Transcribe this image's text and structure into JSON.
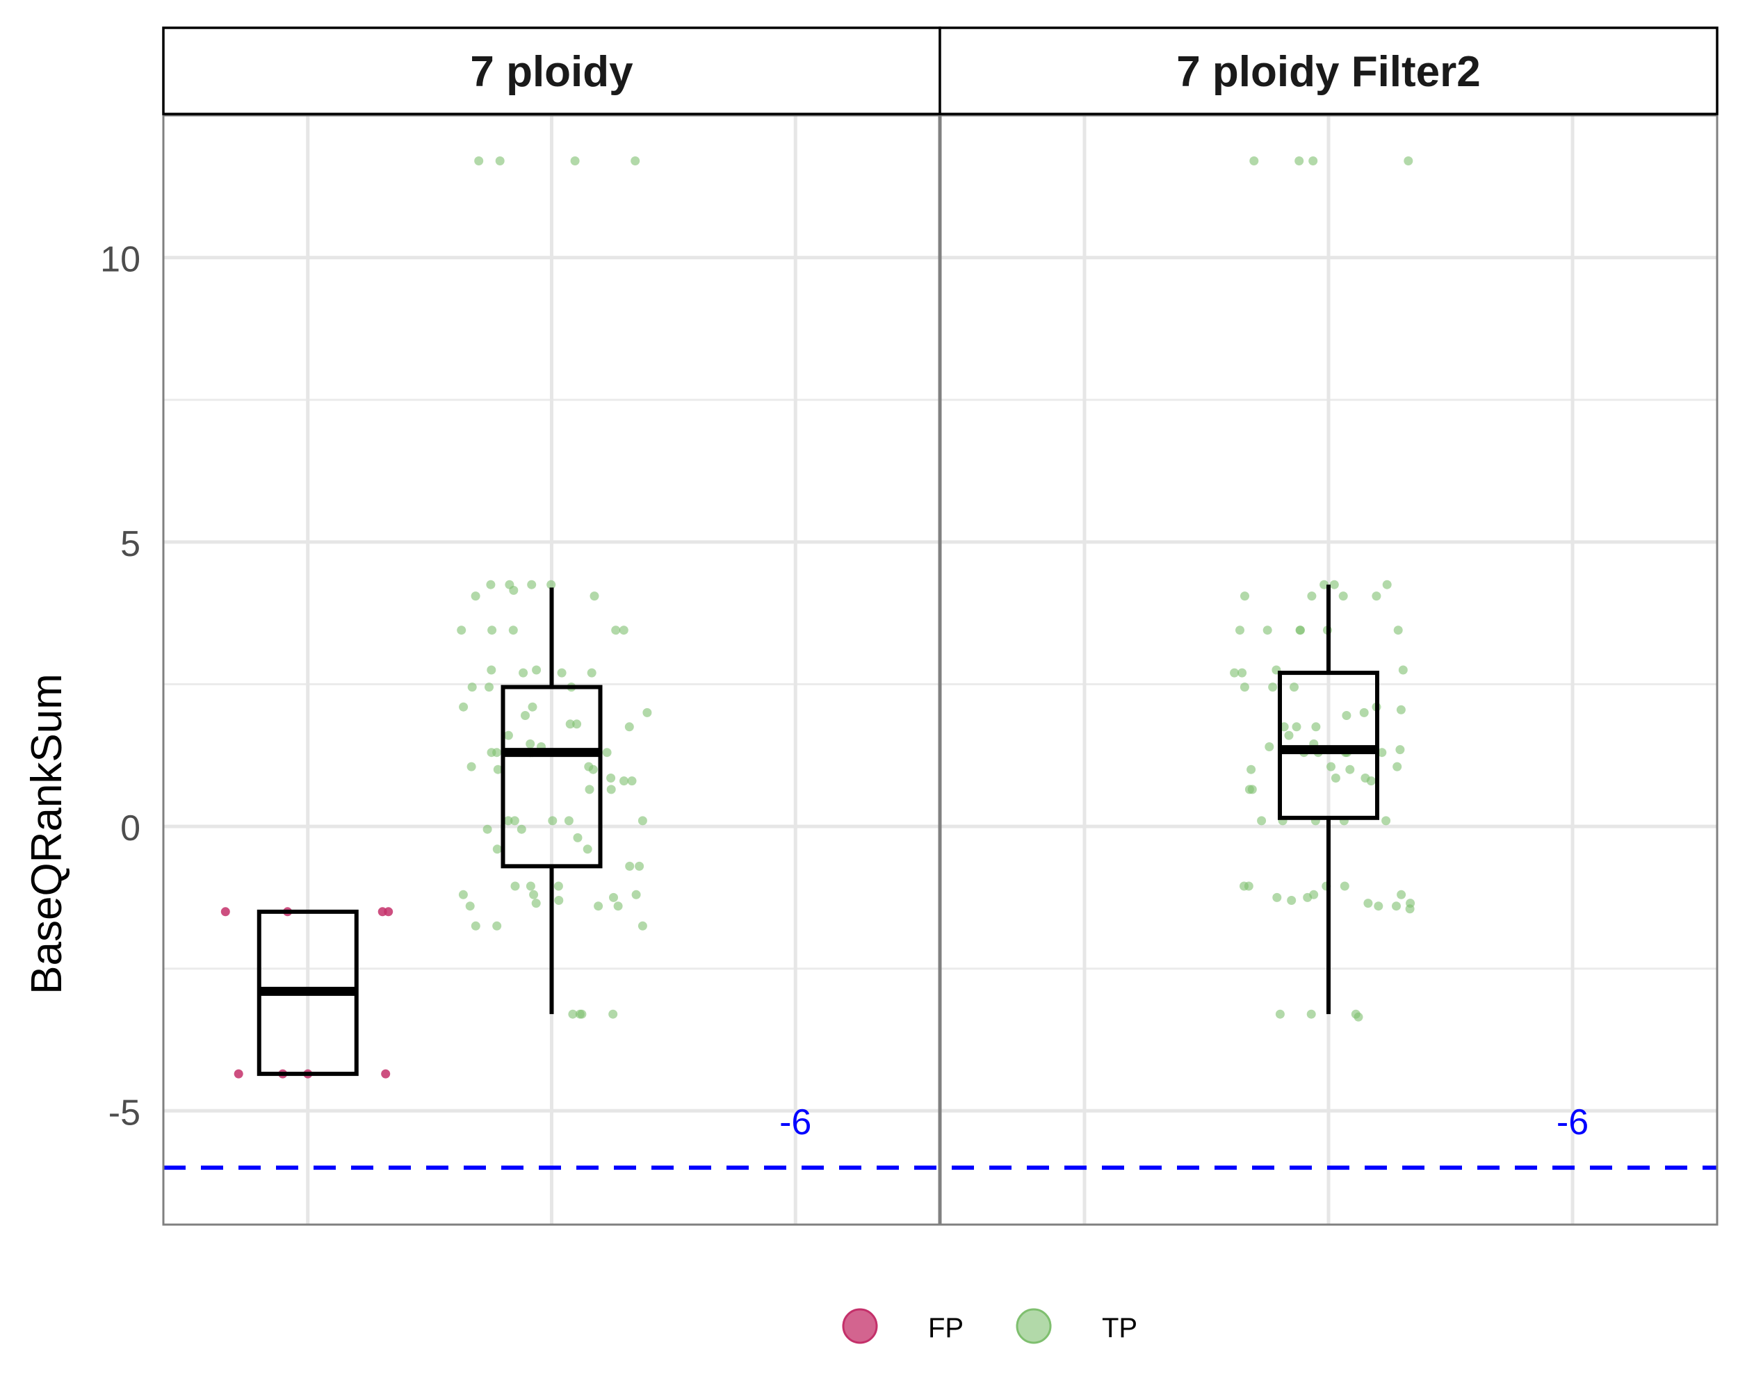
{
  "chart_data": {
    "type": "boxplot",
    "ylabel": "BaseQRankSum",
    "ylim": [
      -7,
      12.5
    ],
    "yticks": [
      -5,
      0,
      5,
      10
    ],
    "ytick_labels": [
      "-5",
      "0",
      "5",
      "10"
    ],
    "grid": true,
    "legend_position": "bottom",
    "threshold": {
      "value": -6,
      "label": "-6",
      "color": "#0000ff",
      "style": "dashed"
    },
    "series": [
      {
        "name": "FP",
        "color": "#c4306a"
      },
      {
        "name": "TP",
        "color": "#7fbf6f"
      }
    ],
    "panels": [
      {
        "title": "7 ploidy",
        "boxes": [
          {
            "series": "FP",
            "lower_whisker": -4.35,
            "q1": -4.35,
            "median": -2.9,
            "q3": -1.5,
            "upper_whisker": -1.5
          },
          {
            "series": "TP",
            "lower_whisker": -3.3,
            "q1": -0.7,
            "median": 1.3,
            "q3": 2.45,
            "upper_whisker": 4.2
          }
        ],
        "points": [
          {
            "series": "FP",
            "values": [
              -1.5,
              -1.5,
              -1.5,
              -1.5,
              -4.35,
              -4.35,
              -4.35,
              -4.35
            ]
          },
          {
            "series": "TP",
            "values": [
              11.7,
              11.7,
              11.7,
              11.7,
              4.25,
              4.25,
              4.25,
              4.25,
              4.05,
              4.05,
              4.15,
              3.45,
              3.45,
              3.45,
              3.45,
              3.45,
              2.75,
              2.75,
              2.7,
              2.7,
              2.7,
              2.45,
              2.45,
              2.45,
              2.1,
              2.1,
              2.0,
              1.95,
              1.8,
              1.8,
              1.75,
              1.6,
              1.45,
              1.4,
              1.3,
              1.3,
              1.3,
              1.3,
              1.3,
              1.3,
              1.05,
              1.05,
              1.0,
              1.0,
              0.85,
              0.8,
              0.8,
              0.65,
              0.65,
              0.1,
              0.1,
              0.1,
              0.1,
              0.1,
              -0.05,
              -0.05,
              -0.2,
              -0.4,
              -0.4,
              -0.7,
              -0.7,
              -1.05,
              -1.05,
              -1.05,
              -1.2,
              -1.2,
              -1.2,
              -1.25,
              -1.3,
              -1.35,
              -1.4,
              -1.4,
              -1.4,
              -1.75,
              -1.75,
              -1.75,
              -3.3,
              -3.3,
              -3.3,
              -3.3
            ]
          }
        ]
      },
      {
        "title": "7 ploidy Filter2",
        "boxes": [
          {
            "series": "TP",
            "lower_whisker": -3.3,
            "q1": 0.15,
            "median": 1.35,
            "q3": 2.7,
            "upper_whisker": 4.25
          }
        ],
        "points": [
          {
            "series": "TP",
            "values": [
              11.7,
              11.7,
              11.7,
              11.7,
              4.25,
              4.25,
              4.25,
              4.05,
              4.05,
              4.05,
              4.05,
              3.45,
              3.45,
              3.45,
              3.45,
              3.45,
              3.45,
              2.75,
              2.75,
              2.7,
              2.7,
              2.45,
              2.45,
              2.45,
              2.1,
              2.05,
              2.0,
              1.95,
              1.75,
              1.75,
              1.75,
              1.6,
              1.45,
              1.4,
              1.35,
              1.3,
              1.3,
              1.3,
              1.3,
              1.3,
              1.05,
              1.05,
              1.0,
              1.0,
              0.85,
              0.85,
              0.8,
              0.65,
              0.65,
              0.1,
              0.1,
              0.1,
              0.1,
              0.1,
              -1.05,
              -1.05,
              -1.05,
              -1.05,
              -1.2,
              -1.2,
              -1.25,
              -1.25,
              -1.3,
              -1.35,
              -1.35,
              -1.4,
              -1.4,
              -1.45,
              -3.35,
              -3.3,
              -3.3,
              -3.3
            ]
          }
        ]
      }
    ]
  }
}
